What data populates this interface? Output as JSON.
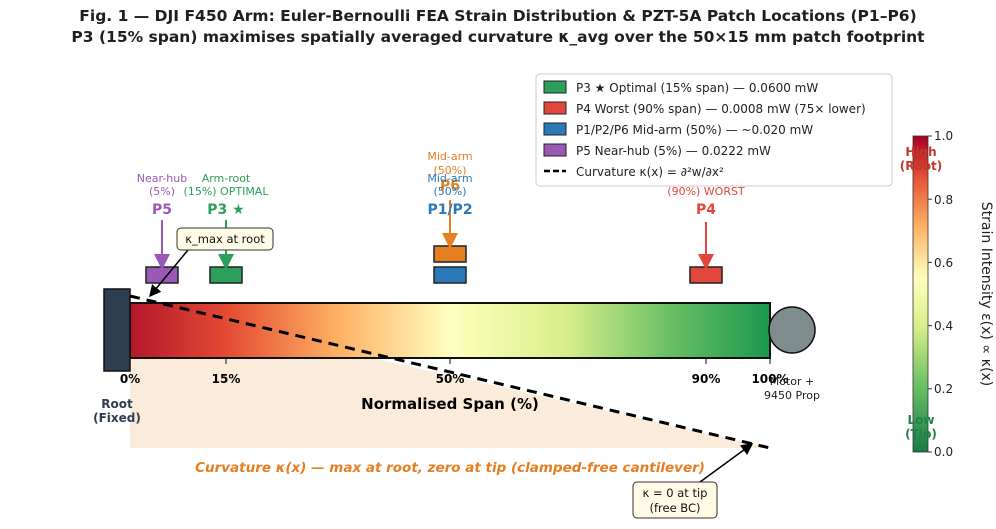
{
  "title": {
    "line1": "Fig. 1 — DJI F450 Arm: Euler-Bernoulli FEA Strain Distribution & PZT-5A Patch Locations (P1–P6)",
    "line2": "P3 (15% span) maximises spatially averaged curvature κ_avg over the 50×15 mm patch footprint"
  },
  "colors": {
    "p3": "#2ca05a",
    "p4": "#e2473b",
    "mid": "#2b79b8",
    "p5": "#9b59b6",
    "p6": "#e67e22",
    "root": "#2d3e50",
    "motor": "#7f8c8d",
    "curv_label": "#e67e22"
  },
  "legend": [
    {
      "label": "P3 ★ Optimal (15% span) — 0.0600 mW",
      "swatch": "#2ca05a"
    },
    {
      "label": "P4 Worst (90% span) — 0.0008 mW (75× lower)",
      "swatch": "#e2473b"
    },
    {
      "label": "P1/P2/P6 Mid-arm (50%) — ~0.020 mW",
      "swatch": "#2b79b8"
    },
    {
      "label": "P5 Near-hub (5%) — 0.0222 mW",
      "swatch": "#9b59b6"
    },
    {
      "label": "Curvature κ(x) = ∂²w/∂x²",
      "swatch": "dashed"
    }
  ],
  "patches": {
    "p5": {
      "sub1": "Near-hub",
      "sub2": "(5%)",
      "name": "P5"
    },
    "p3": {
      "sub1": "Arm-root",
      "sub2": "(15%) OPTIMAL",
      "name": "P3 ★"
    },
    "p6": {
      "sub1": "Mid-arm",
      "sub2": "(50%)",
      "name": "P6"
    },
    "p12": {
      "sub1": "Mid-arm",
      "sub2": "(50%)",
      "name": "P1/P2"
    },
    "p4": {
      "sub2": "(90%) WORST",
      "name": "P4"
    }
  },
  "ticks": [
    "0%",
    "15%",
    "50%",
    "90%",
    "100%"
  ],
  "axis": {
    "xlabel": "Normalised Span (%)"
  },
  "root_label": {
    "line1": "Root",
    "line2": "(Fixed)"
  },
  "motor_label": {
    "line1": "Motor +",
    "line2": "9450 Prop"
  },
  "annotations": {
    "kmax": "κ_max at root",
    "k0_line1": "κ = 0 at tip",
    "k0_line2": "(free BC)",
    "curvature_caption": "Curvature κ(x) — max at root, zero at tip (clamped-free cantilever)"
  },
  "colorbar": {
    "label": "Strain Intensity ε(x) ∝ κ(x)",
    "ticks": [
      "0.0",
      "0.2",
      "0.4",
      "0.6",
      "0.8",
      "1.0"
    ],
    "high_line1": "High",
    "high_line2": "(Root)",
    "low_line1": "Low",
    "low_line2": "(Tip)"
  }
}
